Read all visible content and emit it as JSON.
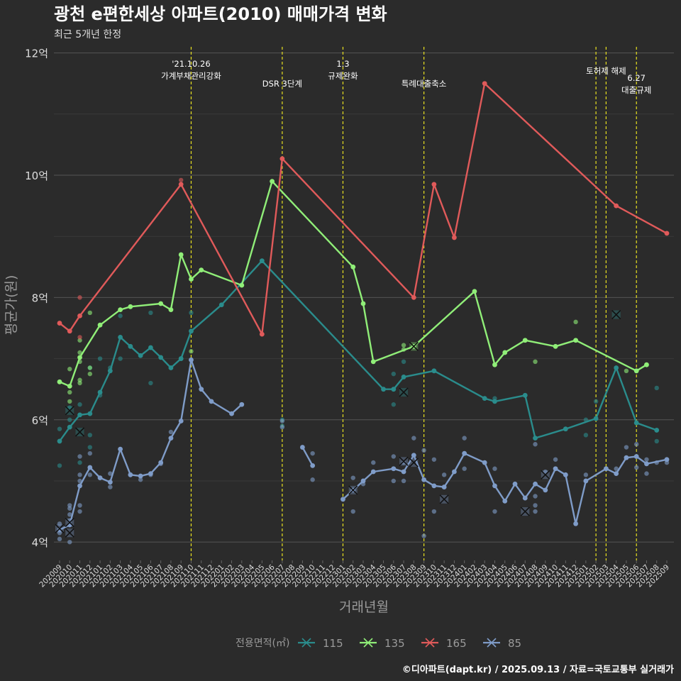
{
  "chart_data": {
    "type": "line",
    "title": "광천 e편한세상 아파트(2010) 매매가격 변화",
    "subtitle": "최근 5개년 한정",
    "xlabel": "거래년월",
    "ylabel": "평균가(원)",
    "caption": "©디아파트(dapt.kr) / 2025.09.13 / 자료=국토교통부 실거래가",
    "legend_title": "전용면적(㎡)",
    "legend_position": "bottom",
    "ylim": [
      3.7,
      12.1
    ],
    "yticks": [
      {
        "v": 4,
        "label": "4억"
      },
      {
        "v": 6,
        "label": "6억"
      },
      {
        "v": 8,
        "label": "8억"
      },
      {
        "v": 10,
        "label": "10억"
      },
      {
        "v": 12,
        "label": "12억"
      }
    ],
    "grid": true,
    "categories": [
      "202009",
      "202010",
      "202011",
      "202012",
      "202101",
      "202102",
      "202103",
      "202104",
      "202105",
      "202106",
      "202107",
      "202108",
      "202109",
      "202110",
      "202111",
      "202112",
      "202201",
      "202202",
      "202203",
      "202204",
      "202205",
      "202206",
      "202207",
      "202208",
      "202209",
      "202210",
      "202211",
      "202212",
      "202301",
      "202302",
      "202303",
      "202304",
      "202305",
      "202306",
      "202307",
      "202308",
      "202309",
      "202310",
      "202311",
      "202312",
      "202401",
      "202402",
      "202403",
      "202404",
      "202405",
      "202406",
      "202407",
      "202408",
      "202409",
      "202410",
      "202411",
      "202412",
      "202501",
      "202502",
      "202503",
      "202504",
      "202505",
      "202506",
      "202507",
      "202508",
      "202509"
    ],
    "events": [
      {
        "x": "202110",
        "label": "'21.10.26\n가계부채관리강화",
        "row": 0
      },
      {
        "x": "202207",
        "label": "DSR 3단계",
        "row": 1
      },
      {
        "x": "202301",
        "label": "1.3\n규제완화",
        "row": 0
      },
      {
        "x": "202309",
        "label": "특례대출축소",
        "row": 1
      },
      {
        "x": "202502",
        "label": "",
        "row": 0
      },
      {
        "x": "202503",
        "label": "토허제 해제",
        "row": 0
      },
      {
        "x": "202506",
        "label": "6.27\n대출규제",
        "row": 2
      }
    ],
    "series": [
      {
        "name": "115",
        "color": "#2a8c8c",
        "line": [
          [
            "202009",
            5.65
          ],
          [
            "202010",
            5.88
          ],
          [
            "202011",
            6.08
          ],
          [
            "202012",
            6.1
          ],
          [
            "202101",
            6.45
          ],
          [
            "202102",
            6.8
          ],
          [
            "202103",
            7.35
          ],
          [
            "202104",
            7.2
          ],
          [
            "202105",
            7.05
          ],
          [
            "202106",
            7.18
          ],
          [
            "202107",
            7.02
          ],
          [
            "202108",
            6.85
          ],
          [
            "202109",
            7.0
          ],
          [
            "202110",
            7.45
          ],
          [
            "202201",
            7.88
          ],
          [
            "202205",
            8.6
          ],
          [
            "202305",
            6.5
          ],
          [
            "202306",
            6.5
          ],
          [
            "202307",
            6.7
          ],
          [
            "202310",
            6.8
          ],
          [
            "202403",
            6.35
          ],
          [
            "202404",
            6.3
          ],
          [
            "202407",
            6.4
          ],
          [
            "202408",
            5.7
          ],
          [
            "202411",
            5.85
          ],
          [
            "202502",
            6.02
          ],
          [
            "202504",
            6.85
          ],
          [
            "202506",
            5.95
          ],
          [
            "202508",
            5.83
          ]
        ],
        "points": [
          [
            "202009",
            5.85
          ],
          [
            "202009",
            5.25
          ],
          [
            "202010",
            6.0
          ],
          [
            "202010",
            6.2
          ],
          [
            "202011",
            6.25
          ],
          [
            "202011",
            5.3
          ],
          [
            "202012",
            5.55
          ],
          [
            "202012",
            5.75
          ],
          [
            "202012",
            6.85
          ],
          [
            "202101",
            6.4
          ],
          [
            "202101",
            7.0
          ],
          [
            "202102",
            6.85
          ],
          [
            "202103",
            7.0
          ],
          [
            "202103",
            7.7
          ],
          [
            "202105",
            7.05
          ],
          [
            "202106",
            6.6
          ],
          [
            "202106",
            7.75
          ],
          [
            "202108",
            6.85
          ],
          [
            "202109",
            7.0
          ],
          [
            "202110",
            7.75
          ],
          [
            "202207",
            5.9
          ],
          [
            "202207",
            6.0
          ],
          [
            "202306",
            6.25
          ],
          [
            "202306",
            6.75
          ],
          [
            "202307",
            6.95
          ],
          [
            "202404",
            6.35
          ],
          [
            "202501",
            6.0
          ],
          [
            "202501",
            5.75
          ],
          [
            "202502",
            6.3
          ],
          [
            "202508",
            6.52
          ],
          [
            "202508",
            5.65
          ]
        ],
        "crosses": [
          [
            "202010",
            6.15
          ],
          [
            "202011",
            5.8
          ],
          [
            "202307",
            6.45
          ],
          [
            "202504",
            7.72
          ]
        ]
      },
      {
        "name": "135",
        "color": "#90ee78",
        "line": [
          [
            "202009",
            6.62
          ],
          [
            "202010",
            6.55
          ],
          [
            "202011",
            7.02
          ],
          [
            "202101",
            7.55
          ],
          [
            "202103",
            7.8
          ],
          [
            "202104",
            7.85
          ],
          [
            "202107",
            7.9
          ],
          [
            "202108",
            7.8
          ],
          [
            "202109",
            8.7
          ],
          [
            "202110",
            8.3
          ],
          [
            "202111",
            8.45
          ],
          [
            "202203",
            8.2
          ],
          [
            "202206",
            9.9
          ],
          [
            "202302",
            8.5
          ],
          [
            "202303",
            7.9
          ],
          [
            "202304",
            6.95
          ],
          [
            "202308",
            7.2
          ],
          [
            "202402",
            8.1
          ],
          [
            "202404",
            6.9
          ],
          [
            "202405",
            7.1
          ],
          [
            "202407",
            7.3
          ],
          [
            "202410",
            7.2
          ],
          [
            "202412",
            7.3
          ],
          [
            "202506",
            6.8
          ],
          [
            "202507",
            6.9
          ]
        ],
        "points": [
          [
            "202010",
            6.45
          ],
          [
            "202010",
            6.55
          ],
          [
            "202010",
            6.83
          ],
          [
            "202010",
            6.3
          ],
          [
            "202011",
            7.1
          ],
          [
            "202011",
            6.95
          ],
          [
            "202011",
            6.65
          ],
          [
            "202011",
            6.6
          ],
          [
            "202011",
            7.3
          ],
          [
            "202012",
            7.75
          ],
          [
            "202012",
            6.85
          ],
          [
            "202012",
            6.75
          ],
          [
            "202110",
            7.12
          ],
          [
            "202307",
            7.15
          ],
          [
            "202307",
            7.22
          ],
          [
            "202408",
            6.95
          ],
          [
            "202412",
            7.6
          ],
          [
            "202505",
            6.8
          ]
        ],
        "crosses": [
          [
            "202308",
            7.2
          ]
        ]
      },
      {
        "name": "165",
        "color": "#e05a5a",
        "line": [
          [
            "202009",
            7.58
          ],
          [
            "202010",
            7.45
          ],
          [
            "202011",
            7.7
          ],
          [
            "202109",
            9.85
          ],
          [
            "202205",
            7.4
          ],
          [
            "202207",
            10.27
          ],
          [
            "202308",
            8.0
          ],
          [
            "202310",
            9.85
          ],
          [
            "202312",
            8.98
          ],
          [
            "202403",
            11.5
          ],
          [
            "202504",
            9.5
          ],
          [
            "202509",
            9.05
          ]
        ],
        "points": [
          [
            "202011",
            8.0
          ],
          [
            "202011",
            7.35
          ],
          [
            "202109",
            9.92
          ]
        ],
        "crosses": []
      },
      {
        "name": "85",
        "color": "#7f9cc8",
        "line": [
          [
            "202009",
            4.2
          ],
          [
            "202010",
            4.28
          ],
          [
            "202011",
            4.92
          ],
          [
            "202012",
            5.22
          ],
          [
            "202101",
            5.05
          ],
          [
            "202102",
            4.98
          ],
          [
            "202103",
            5.52
          ],
          [
            "202104",
            5.1
          ],
          [
            "202105",
            5.08
          ],
          [
            "202106",
            5.12
          ],
          [
            "202107",
            5.3
          ],
          [
            "202108",
            5.7
          ],
          [
            "202109",
            5.98
          ],
          [
            "202110",
            6.98
          ],
          [
            "202111",
            6.5
          ],
          [
            "202112",
            6.3
          ],
          [
            "202202",
            6.1
          ],
          [
            "202203",
            6.25
          ],
          null,
          [
            "202209",
            5.55
          ],
          [
            "202210",
            5.25
          ],
          null,
          [
            "202301",
            4.7
          ],
          [
            "202302",
            4.85
          ],
          [
            "202303",
            5.0
          ],
          [
            "202304",
            5.15
          ],
          [
            "202306",
            5.2
          ],
          [
            "202307",
            5.15
          ],
          [
            "202308",
            5.42
          ],
          [
            "202309",
            5.02
          ],
          [
            "202310",
            4.92
          ],
          [
            "202311",
            4.9
          ],
          [
            "202312",
            5.15
          ],
          [
            "202401",
            5.45
          ],
          [
            "202403",
            5.3
          ],
          [
            "202404",
            4.92
          ],
          [
            "202405",
            4.67
          ],
          [
            "202406",
            4.95
          ],
          [
            "202407",
            4.72
          ],
          [
            "202408",
            4.95
          ],
          [
            "202409",
            4.85
          ],
          [
            "202410",
            5.2
          ],
          [
            "202411",
            5.1
          ],
          [
            "202412",
            4.3
          ],
          [
            "202501",
            5.0
          ],
          [
            "202503",
            5.2
          ],
          [
            "202504",
            5.12
          ],
          [
            "202505",
            5.38
          ],
          [
            "202506",
            5.4
          ],
          [
            "202507",
            5.28
          ],
          [
            "202509",
            5.35
          ]
        ],
        "points": [
          [
            "202009",
            4.05
          ],
          [
            "202009",
            4.15
          ],
          [
            "202009",
            4.3
          ],
          [
            "202010",
            4.0
          ],
          [
            "202010",
            4.35
          ],
          [
            "202010",
            4.45
          ],
          [
            "202010",
            4.55
          ],
          [
            "202010",
            4.6
          ],
          [
            "202011",
            4.5
          ],
          [
            "202011",
            4.6
          ],
          [
            "202011",
            5.4
          ],
          [
            "202011",
            5.1
          ],
          [
            "202011",
            5.0
          ],
          [
            "202012",
            5.45
          ],
          [
            "202012",
            5.1
          ],
          [
            "202102",
            4.9
          ],
          [
            "202102",
            5.12
          ],
          [
            "202105",
            5.02
          ],
          [
            "202106",
            5.1
          ],
          [
            "202107",
            5.28
          ],
          [
            "202108",
            5.8
          ],
          [
            "202108",
            5.7
          ],
          [
            "202207",
            5.88
          ],
          [
            "202207",
            5.98
          ],
          [
            "202210",
            5.45
          ],
          [
            "202210",
            5.02
          ],
          [
            "202302",
            5.05
          ],
          [
            "202302",
            4.5
          ],
          [
            "202303",
            4.95
          ],
          [
            "202304",
            5.3
          ],
          [
            "202306",
            5.0
          ],
          [
            "202306",
            5.4
          ],
          [
            "202307",
            5.0
          ],
          [
            "202307",
            5.3
          ],
          [
            "202308",
            5.7
          ],
          [
            "202309",
            5.5
          ],
          [
            "202309",
            4.1
          ],
          [
            "202310",
            5.35
          ],
          [
            "202310",
            4.5
          ],
          [
            "202311",
            5.1
          ],
          [
            "202401",
            5.2
          ],
          [
            "202401",
            5.7
          ],
          [
            "202404",
            5.2
          ],
          [
            "202404",
            4.5
          ],
          [
            "202406",
            4.95
          ],
          [
            "202408",
            5.6
          ],
          [
            "202408",
            4.5
          ],
          [
            "202408",
            4.6
          ],
          [
            "202408",
            4.75
          ],
          [
            "202409",
            5.15
          ],
          [
            "202410",
            5.35
          ],
          [
            "202411",
            5.1
          ],
          [
            "202501",
            5.1
          ],
          [
            "202503",
            5.2
          ],
          [
            "202504",
            5.2
          ],
          [
            "202505",
            5.55
          ],
          [
            "202506",
            5.22
          ],
          [
            "202506",
            5.6
          ],
          [
            "202507",
            5.12
          ],
          [
            "202507",
            5.35
          ],
          [
            "202508",
            5.3
          ],
          [
            "202509",
            5.3
          ]
        ],
        "crosses": [
          [
            "202009",
            4.22
          ],
          [
            "202010",
            4.15
          ],
          [
            "202010",
            4.32
          ],
          [
            "202302",
            4.85
          ],
          [
            "202307",
            5.32
          ],
          [
            "202308",
            5.3
          ],
          [
            "202311",
            4.7
          ],
          [
            "202407",
            4.5
          ],
          [
            "202409",
            5.1
          ]
        ]
      }
    ]
  }
}
